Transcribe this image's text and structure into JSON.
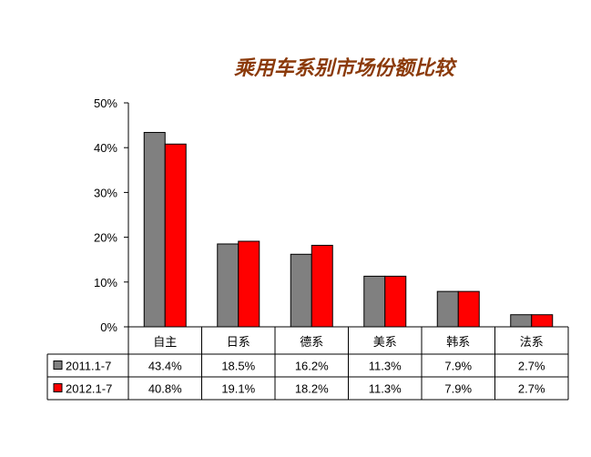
{
  "chart_data": {
    "type": "bar",
    "title": "乘用车系别市场份额比较",
    "categories": [
      "自主",
      "日系",
      "德系",
      "美系",
      "韩系",
      "法系"
    ],
    "series": [
      {
        "name": "2011.1-7",
        "values": [
          43.4,
          18.5,
          16.2,
          11.3,
          7.9,
          2.7
        ],
        "labels": [
          "43.4%",
          "18.5%",
          "16.2%",
          "11.3%",
          "7.9%",
          "2.7%"
        ],
        "color": "#808080"
      },
      {
        "name": "2012.1-7",
        "values": [
          40.8,
          19.1,
          18.2,
          11.3,
          7.9,
          2.7
        ],
        "labels": [
          "40.8%",
          "19.1%",
          "18.2%",
          "11.3%",
          "7.9%",
          "2.7%"
        ],
        "color": "#ff0000"
      }
    ],
    "y_ticks": [
      "0%",
      "10%",
      "20%",
      "30%",
      "40%",
      "50%"
    ],
    "ylim": [
      0,
      50
    ],
    "grid": false,
    "legend": "data-table",
    "title_color": "#8b3a0a"
  }
}
